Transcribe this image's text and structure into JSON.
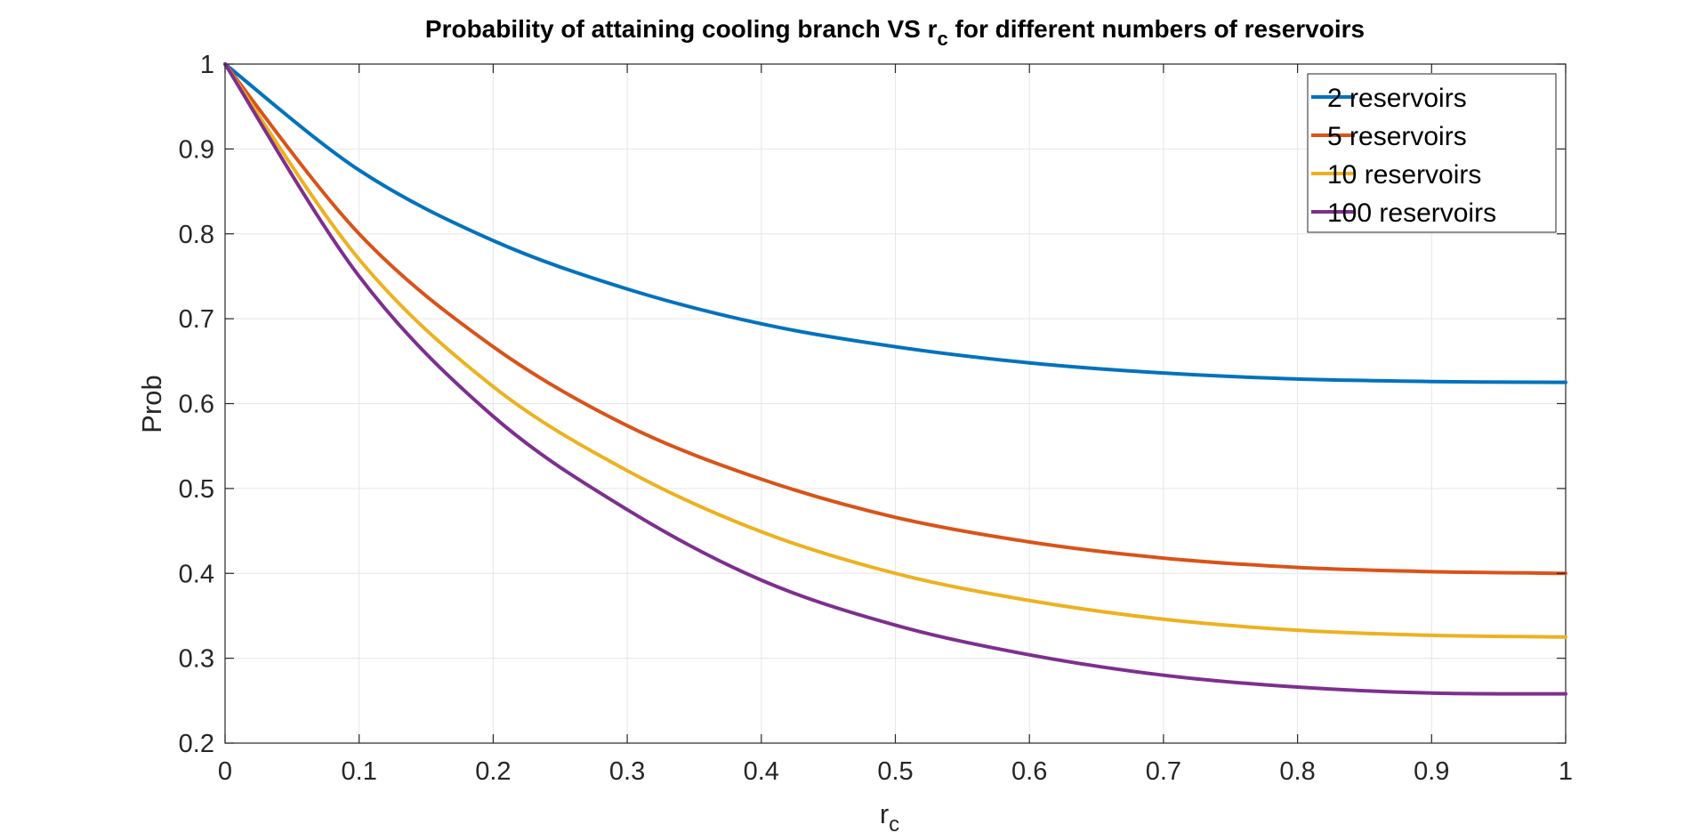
{
  "chart_data": {
    "type": "line",
    "title_main": "Probability of attaining cooling branch VS r",
    "title_sub": "c",
    "title_rest": " for different numbers of reservoirs",
    "xlabel_main": "r",
    "xlabel_sub": "c",
    "ylabel": "Prob",
    "xlim": [
      0,
      1
    ],
    "ylim": [
      0.2,
      1
    ],
    "grid": true,
    "legend_position": "top-right",
    "x_ticks": [
      0,
      0.1,
      0.2,
      0.3,
      0.4,
      0.5,
      0.6,
      0.7,
      0.8,
      0.9,
      1
    ],
    "x_tick_labels": [
      "0",
      "0.1",
      "0.2",
      "0.3",
      "0.4",
      "0.5",
      "0.6",
      "0.7",
      "0.8",
      "0.9",
      "1"
    ],
    "y_ticks": [
      0.2,
      0.3,
      0.4,
      0.5,
      0.6,
      0.7,
      0.8,
      0.9,
      1
    ],
    "y_tick_labels": [
      "0.2",
      "0.3",
      "0.4",
      "0.5",
      "0.6",
      "0.7",
      "0.8",
      "0.9",
      "1"
    ],
    "x": [
      0,
      0.1,
      0.2,
      0.3,
      0.4,
      0.5,
      0.6,
      0.7,
      0.8,
      0.9,
      1
    ],
    "series": [
      {
        "name": "2 reservoirs",
        "color": "#0072BD",
        "values": [
          1.0,
          0.875,
          0.792,
          0.735,
          0.694,
          0.667,
          0.648,
          0.636,
          0.629,
          0.626,
          0.625
        ]
      },
      {
        "name": "5 reservoirs",
        "color": "#D95319",
        "values": [
          1.0,
          0.8,
          0.667,
          0.574,
          0.511,
          0.466,
          0.437,
          0.418,
          0.407,
          0.402,
          0.4
        ]
      },
      {
        "name": "10 reservoirs",
        "color": "#EDB120",
        "values": [
          1.0,
          0.77,
          0.62,
          0.521,
          0.449,
          0.4,
          0.368,
          0.346,
          0.333,
          0.327,
          0.325
        ]
      },
      {
        "name": "100 reservoirs",
        "color": "#7E2F8E",
        "values": [
          1.0,
          0.75,
          0.585,
          0.475,
          0.392,
          0.339,
          0.304,
          0.28,
          0.266,
          0.259,
          0.258
        ]
      }
    ]
  }
}
